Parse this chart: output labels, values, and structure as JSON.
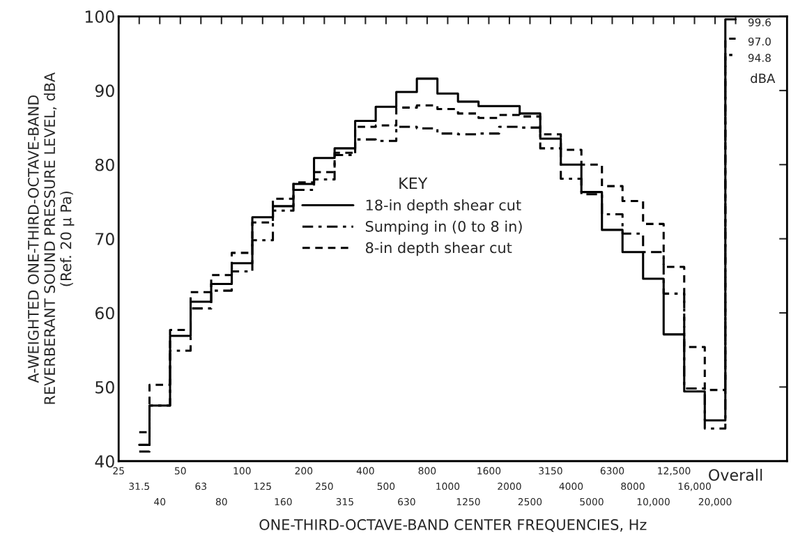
{
  "chart_data": {
    "type": "step",
    "xlabel": "ONE-THIRD-OCTAVE-BAND CENTER FREQUENCIES, Hz",
    "ylabel": "A-WEIGHTED ONE-THIRD-OCTAVE-BAND\nREVERBERANT SOUND PRESSURE LEVEL, dBA\n(Ref. 20 μ Pa)",
    "legend_title": "KEY",
    "categories": [
      "25",
      "31.5",
      "40",
      "50",
      "63",
      "80",
      "100",
      "125",
      "160",
      "200",
      "250",
      "315",
      "400",
      "500",
      "630",
      "800",
      "1000",
      "1250",
      "1600",
      "2000",
      "2500",
      "3150",
      "4000",
      "5000",
      "6300",
      "8000",
      "10,000",
      "12,500",
      "16,000",
      "20,000",
      "Overall"
    ],
    "series": [
      {
        "name": "18-in depth shear cut",
        "color": "#000000",
        "line_style": "solid",
        "values": [
          null,
          42.2,
          47.5,
          56.9,
          61.5,
          63.9,
          66.7,
          72.9,
          74.4,
          77.4,
          80.9,
          82.2,
          85.9,
          87.8,
          89.8,
          91.6,
          89.6,
          88.5,
          87.9,
          87.9,
          86.9,
          83.5,
          80.0,
          76.3,
          71.2,
          68.2,
          64.6,
          57.1,
          49.4,
          45.5,
          99.6
        ]
      },
      {
        "name": "Sumping in (0 to 8 in)",
        "color": "#000000",
        "line_style": "dashdot",
        "values": [
          null,
          41.3,
          47.5,
          54.9,
          60.6,
          63.0,
          65.6,
          69.8,
          73.8,
          76.6,
          78.0,
          81.3,
          83.4,
          83.2,
          85.1,
          84.9,
          84.2,
          84.1,
          84.2,
          85.1,
          85.0,
          82.2,
          78.1,
          76.0,
          73.3,
          70.7,
          68.2,
          62.6,
          49.8,
          44.4,
          94.8
        ]
      },
      {
        "name": "8-in depth shear cut",
        "color": "#000000",
        "line_style": "dashed",
        "values": [
          null,
          43.9,
          50.3,
          57.7,
          62.8,
          65.1,
          68.1,
          72.2,
          75.4,
          77.6,
          79.0,
          81.6,
          85.1,
          85.3,
          87.7,
          88.0,
          87.5,
          86.9,
          86.3,
          86.7,
          86.5,
          84.1,
          82.0,
          80.0,
          77.1,
          75.1,
          72.0,
          66.2,
          55.4,
          49.6,
          97.0
        ]
      }
    ],
    "ylim": [
      40,
      100
    ],
    "yticks": [
      40,
      50,
      60,
      70,
      80,
      90,
      100
    ],
    "legend": "center",
    "grid": false,
    "annotations": [
      {
        "text": "99.6",
        "x": "Overall",
        "y": 99.6
      },
      {
        "text": "97.0",
        "x": "Overall",
        "y": 97.0
      },
      {
        "text": "94.8",
        "x": "Overall",
        "y": 94.8
      },
      "dBA"
    ]
  }
}
